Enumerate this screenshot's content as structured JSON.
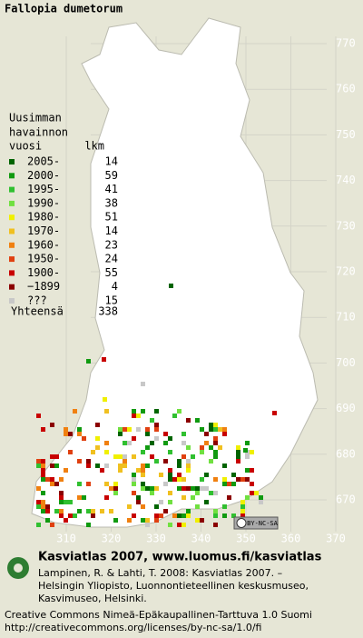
{
  "title": "Fallopia dumetorum",
  "legend": {
    "heading": [
      "Uusimman",
      "havainnon",
      "vuosi"
    ],
    "count_heading": "lkm",
    "entries": [
      {
        "label": "2005-",
        "count": 14,
        "color": "#006400"
      },
      {
        "label": "2000-",
        "count": 59,
        "color": "#109a10"
      },
      {
        "label": "1995-",
        "count": 41,
        "color": "#30c030"
      },
      {
        "label": "1990-",
        "count": 38,
        "color": "#70e040"
      },
      {
        "label": "1980-",
        "count": 51,
        "color": "#f0f000"
      },
      {
        "label": "1970-",
        "count": 14,
        "color": "#f0c020"
      },
      {
        "label": "1960-",
        "count": 23,
        "color": "#f08010"
      },
      {
        "label": "1950-",
        "count": 24,
        "color": "#e04010"
      },
      {
        "label": "1900-",
        "count": 55,
        "color": "#c80000"
      },
      {
        "label": "−1899",
        "count": 4,
        "color": "#8b0000"
      },
      {
        "label": "???",
        "count": 15,
        "color": "#c8c8c8"
      }
    ],
    "total_label": "Yhteensä",
    "total": 338
  },
  "map": {
    "northing_ticks": [
      770,
      760,
      750,
      740,
      730,
      720,
      710,
      700,
      690,
      680,
      670
    ],
    "easting_ticks": [
      310,
      320,
      330,
      340,
      350,
      360,
      370
    ],
    "license_badge": "BY-NC-SA"
  },
  "footer": {
    "brand": "Kasviatlas 2007, www.luomus.fi/kasviatlas",
    "citation": [
      "Lampinen, R. & Lahti, T. 2008: Kasviatlas 2007. –",
      "Helsingin Yliopisto, Luonnontieteellinen keskusmuseo,",
      "Kasvimuseo, Helsinki."
    ],
    "license": [
      "Creative Commons Nimeä-Epäkaupallinen-Tarttuva 1.0 Suomi",
      "http://creativecommons.org/licenses/by-nc-sa/1.0/fi"
    ]
  }
}
